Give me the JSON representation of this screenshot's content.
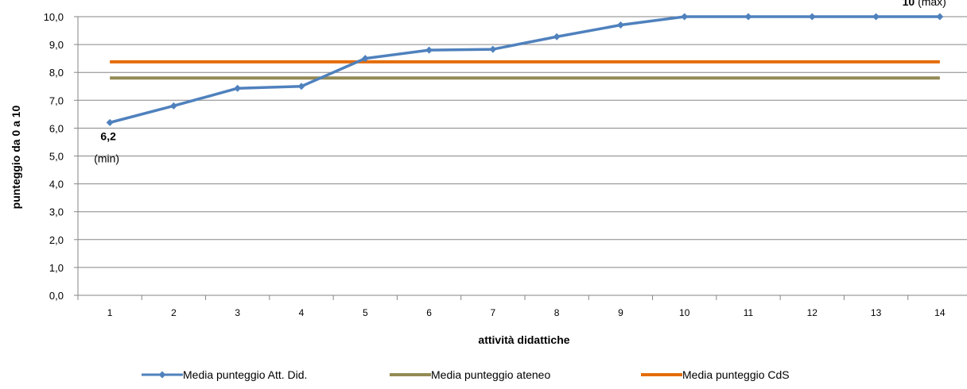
{
  "chart_data": {
    "type": "line",
    "title": "",
    "xlabel": "attività didattiche",
    "ylabel": "punteggio da 0 a 10",
    "ylim": [
      0,
      10
    ],
    "yticks": [
      "0,0",
      "1,0",
      "2,0",
      "3,0",
      "4,0",
      "5,0",
      "6,0",
      "7,0",
      "8,0",
      "9,0",
      "10,0"
    ],
    "categories": [
      "1",
      "2",
      "3",
      "4",
      "5",
      "6",
      "7",
      "8",
      "9",
      "10",
      "11",
      "12",
      "13",
      "14"
    ],
    "grid": "horizontal",
    "legend_position": "bottom",
    "series": [
      {
        "name": "Media punteggio Att. Did.",
        "color": "#4f81bd",
        "marker": "diamond",
        "values": [
          6.2,
          6.8,
          7.43,
          7.5,
          8.5,
          8.8,
          8.83,
          9.28,
          9.7,
          10.0,
          10.0,
          10.0,
          10.0,
          10.0
        ]
      },
      {
        "name": "Media punteggio ateneo",
        "color": "#948a54",
        "marker": "none",
        "values": [
          7.8,
          7.8,
          7.8,
          7.8,
          7.8,
          7.8,
          7.8,
          7.8,
          7.8,
          7.8,
          7.8,
          7.8,
          7.8,
          7.8
        ]
      },
      {
        "name": "Media punteggio CdS",
        "color": "#e46c0a",
        "marker": "none",
        "values": [
          8.38,
          8.38,
          8.38,
          8.38,
          8.38,
          8.38,
          8.38,
          8.38,
          8.38,
          8.38,
          8.38,
          8.38,
          8.38,
          8.38
        ]
      }
    ],
    "annotations": [
      {
        "index": 0,
        "value": "6,2",
        "note": "(min)"
      },
      {
        "index": 13,
        "value": "10",
        "note": "(max)"
      }
    ]
  }
}
